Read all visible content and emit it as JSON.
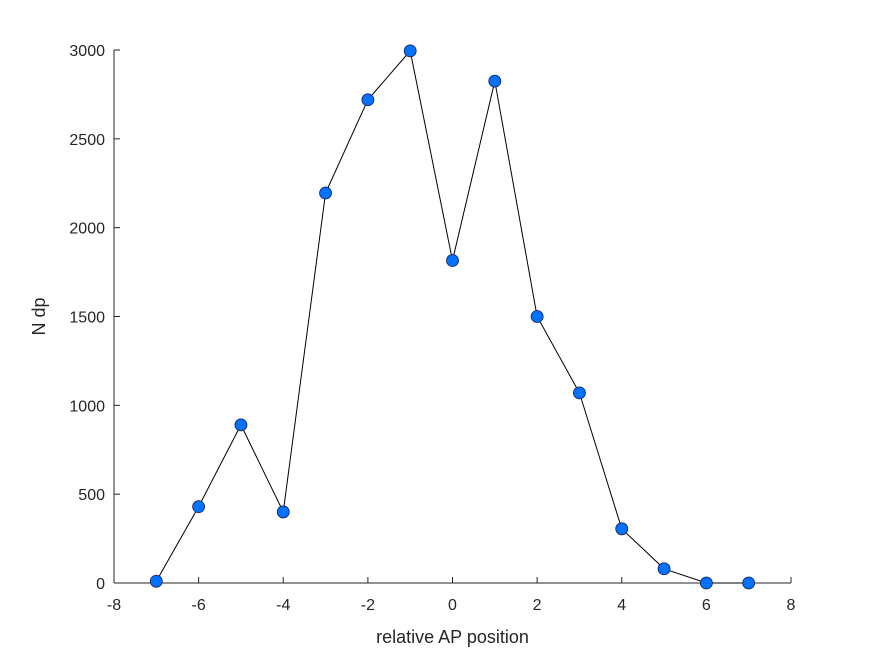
{
  "chart_data": {
    "type": "line",
    "title": "",
    "xlabel": "relative AP position",
    "ylabel": "N dp",
    "xlim": [
      -8,
      8
    ],
    "ylim": [
      0,
      3000
    ],
    "xticks": [
      -8,
      -6,
      -4,
      -2,
      0,
      2,
      4,
      6,
      8
    ],
    "yticks": [
      0,
      500,
      1000,
      1500,
      2000,
      2500,
      3000
    ],
    "grid": false,
    "series": [
      {
        "x": [
          -7,
          -6,
          -5,
          -4,
          -3,
          -2,
          -1,
          0,
          1,
          2,
          3,
          4,
          5,
          6,
          7
        ],
        "y": [
          10,
          430,
          890,
          400,
          2195,
          2720,
          2995,
          1815,
          2825,
          1500,
          1070,
          305,
          80,
          0,
          0
        ],
        "line_color": "#000000",
        "marker": "circle",
        "marker_color": "#0072FF",
        "marker_edge_color": "#1a1a4a"
      }
    ]
  }
}
